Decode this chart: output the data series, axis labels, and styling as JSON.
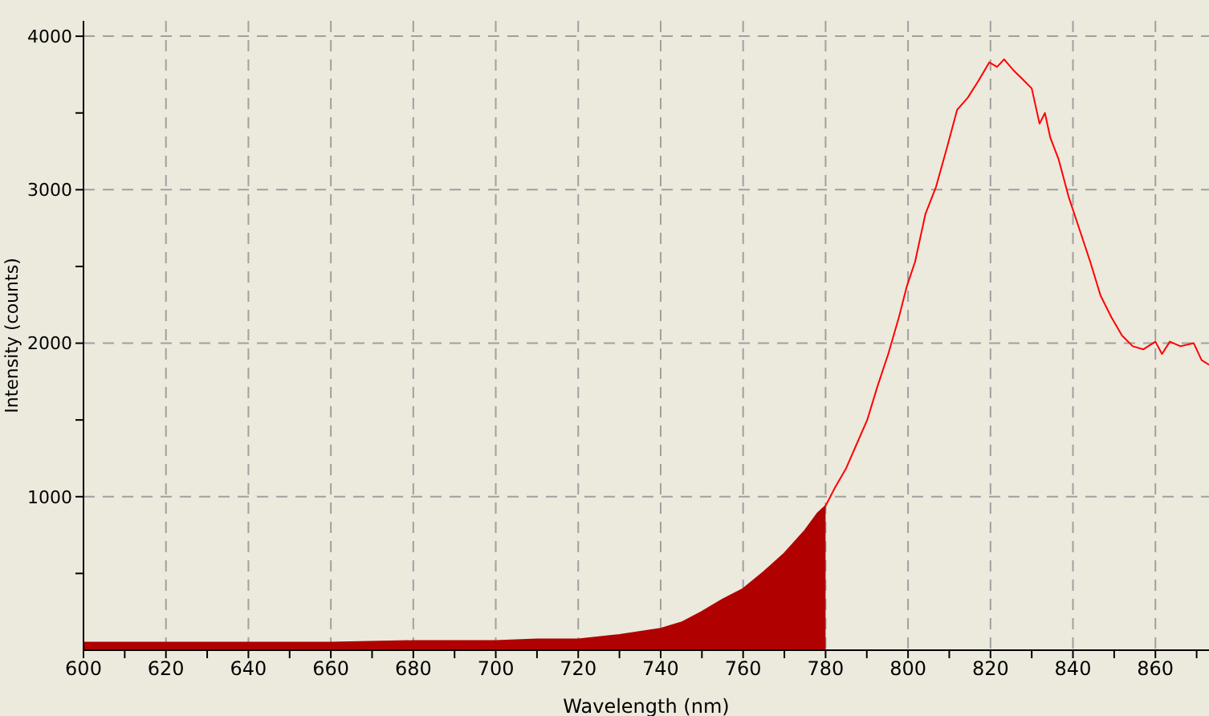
{
  "chart_data": {
    "type": "line",
    "xlabel": "Wavelength (nm)",
    "ylabel": "Intensity (counts)",
    "xlim": [
      600,
      873
    ],
    "ylim": [
      0,
      4100
    ],
    "xticks": [
      600,
      {
        "value": 610,
        "label": null
      },
      620,
      {
        "value": 630,
        "label": null
      },
      640,
      {
        "value": 650,
        "label": null
      },
      660,
      {
        "value": 670,
        "label": null
      },
      680,
      {
        "value": 690,
        "label": null
      },
      700,
      {
        "value": 710,
        "label": null
      },
      720,
      {
        "value": 730,
        "label": null
      },
      740,
      {
        "value": 750,
        "label": null
      },
      760,
      {
        "value": 770,
        "label": null
      },
      780,
      {
        "value": 790,
        "label": null
      },
      800,
      {
        "value": 810,
        "label": null
      },
      820,
      {
        "value": 830,
        "label": null
      },
      840,
      {
        "value": 850,
        "label": null
      },
      860,
      {
        "value": 870,
        "label": null
      }
    ],
    "yticks": [
      {
        "value": 500,
        "label": null
      },
      1000,
      {
        "value": 1500,
        "label": null
      },
      2000,
      {
        "value": 2500,
        "label": null
      },
      3000,
      {
        "value": 3500,
        "label": null
      },
      4000
    ],
    "grid": true,
    "legend": false,
    "marker": "none",
    "line_style": "solid",
    "series": [
      {
        "type": "area",
        "color": "#b00000",
        "x": [
          600,
          620,
          640,
          660,
          680,
          700,
          710,
          720,
          730,
          740,
          745,
          750,
          755,
          760,
          765,
          770,
          775,
          778,
          780
        ],
        "values": [
          50,
          50,
          50,
          50,
          60,
          60,
          70,
          70,
          100,
          140,
          180,
          250,
          330,
          400,
          510,
          630,
          780,
          890,
          940
        ]
      },
      {
        "color": "#ff0000",
        "x": [
          780,
          782.3,
          784.9,
          787.5,
          790.1,
          792.6,
          795.2,
          797.8,
          799.7,
          801.7,
          804.2,
          806.8,
          809.4,
          811.9,
          814.5,
          817.1,
          819.7,
          821.6,
          823.3,
          825.5,
          827.4,
          830,
          831.9,
          833.2,
          834.5,
          836.5,
          839,
          841.6,
          844.2,
          846.7,
          849.3,
          851.9,
          854.5,
          857.1,
          860,
          861.6,
          863.5,
          866.1,
          869.3,
          871.2,
          873
        ],
        "values": [
          940,
          1060,
          1180,
          1340,
          1500,
          1720,
          1930,
          2170,
          2370,
          2530,
          2840,
          3020,
          3270,
          3520,
          3600,
          3710,
          3830,
          3800,
          3850,
          3780,
          3730,
          3660,
          3430,
          3500,
          3340,
          3200,
          2950,
          2740,
          2530,
          2310,
          2170,
          2050,
          1980,
          1960,
          2010,
          1930,
          2010,
          1980,
          2000,
          1890,
          1860
        ]
      }
    ]
  }
}
